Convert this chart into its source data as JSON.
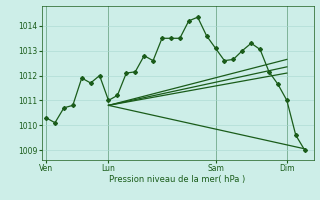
{
  "background_color": "#cdeee8",
  "grid_color": "#a8d8d0",
  "line_color": "#1a5c1a",
  "marker": "D",
  "markersize": 2.0,
  "linewidth": 0.9,
  "xlabel": "Pression niveau de la mer( hPa )",
  "ylim": [
    1008.6,
    1014.8
  ],
  "yticks": [
    1009,
    1010,
    1011,
    1012,
    1013,
    1014
  ],
  "xtick_labels": [
    "Ven",
    "Lun",
    "Sam",
    "Dim"
  ],
  "xtick_positions": [
    0,
    7,
    19,
    27
  ],
  "vline_positions": [
    0,
    7,
    19,
    27
  ],
  "series": [
    {
      "x": [
        0,
        1,
        2,
        3,
        4,
        5,
        6,
        7,
        8,
        9,
        10,
        11,
        12,
        13,
        14,
        15,
        16,
        17,
        18,
        19,
        20,
        21,
        22,
        23,
        24,
        25,
        26,
        27,
        28,
        29
      ],
      "y": [
        1010.3,
        1010.1,
        1010.7,
        1010.8,
        1011.9,
        1011.7,
        1012.0,
        1011.0,
        1011.2,
        1012.1,
        1012.15,
        1012.8,
        1012.6,
        1013.5,
        1013.5,
        1013.5,
        1014.2,
        1014.35,
        1013.6,
        1013.1,
        1012.6,
        1012.65,
        1013.0,
        1013.3,
        1013.05,
        1012.15,
        1011.65,
        1011.0,
        1009.6,
        1009.0
      ],
      "has_markers": true
    },
    {
      "x": [
        7,
        27
      ],
      "y": [
        1010.8,
        1012.65
      ],
      "has_markers": false
    },
    {
      "x": [
        7,
        27
      ],
      "y": [
        1010.8,
        1012.35
      ],
      "has_markers": false
    },
    {
      "x": [
        7,
        27
      ],
      "y": [
        1010.8,
        1012.1
      ],
      "has_markers": false
    },
    {
      "x": [
        7,
        29
      ],
      "y": [
        1010.8,
        1009.05
      ],
      "has_markers": false
    }
  ],
  "xlim": [
    -0.5,
    30
  ]
}
